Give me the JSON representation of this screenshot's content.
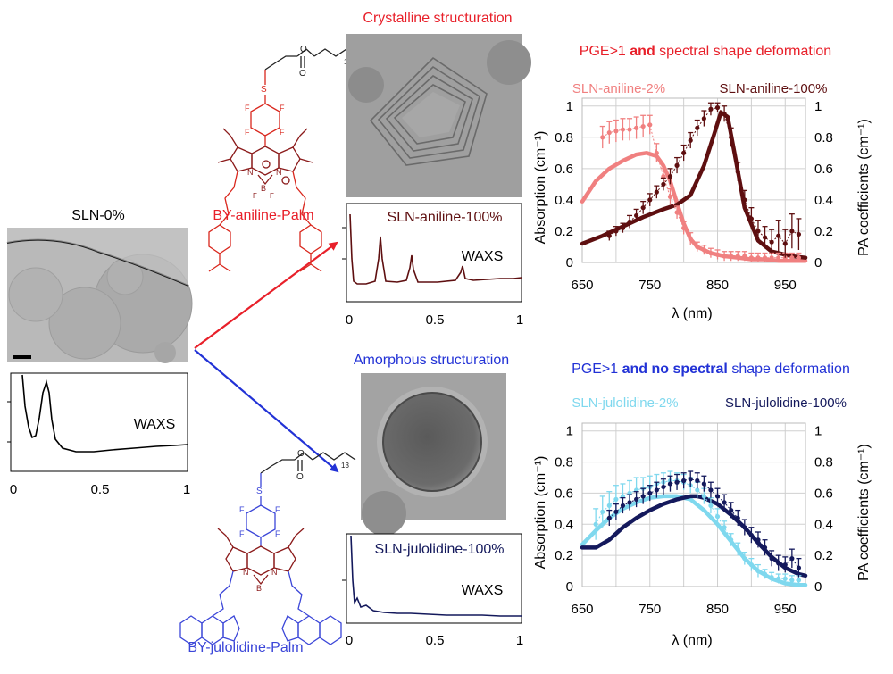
{
  "colors": {
    "red": "#e8202a",
    "blue": "#2232d6",
    "maroon": "#5e0f10",
    "salmon": "#f08080",
    "navy": "#14195c",
    "lightblue": "#7fd8ee",
    "bodipy_red": "#d9261c",
    "bodipy_blue": "#3b46d8",
    "bodipy_dark": "#8b1a1a"
  },
  "titles": {
    "crystalline": "Crystalline structuration",
    "amorphous": "Amorphous structuration"
  },
  "molecules": {
    "aniline": "BY-aniline-Palm",
    "julolidine": "BY-julolidine-Palm",
    "chain_subscript": "13"
  },
  "sln0": {
    "label": "SLN-0%",
    "waxs_label": "WAXS"
  },
  "waxs_axis": {
    "ticks": [
      "0",
      "0.5",
      "1"
    ]
  },
  "waxs_aniline": {
    "label": "SLN-aniline-100%",
    "waxs_label": "WAXS"
  },
  "waxs_julolidine": {
    "label": "SLN-julolidine-100%",
    "waxs_label": "WAXS"
  },
  "chart_data": [
    {
      "type": "line",
      "title_prefix": "PGE>1 ",
      "title_bold": "and",
      "title_suffix": " spectral shape deformation",
      "xlabel": "λ (nm)",
      "ylabel_left": "Absorption (cm⁻¹)",
      "ylabel_right": "PA coefficients (cm⁻¹)",
      "xlim": [
        650,
        980
      ],
      "ylim": [
        0,
        1.05
      ],
      "xticks": [
        "650",
        "750",
        "850",
        "950"
      ],
      "yticks_left": [
        "0",
        "0.2",
        "0.4",
        "0.6",
        "0.8",
        "1"
      ],
      "yticks_right": [
        "0",
        "0.2",
        "0.4",
        "0.6",
        "0.8",
        "1"
      ],
      "series": [
        {
          "name": "SLN-aniline-2%",
          "color": "#f08080",
          "x": [
            650,
            670,
            690,
            710,
            730,
            745,
            760,
            770,
            780,
            790,
            800,
            810,
            820,
            840,
            860,
            880,
            900,
            920,
            940,
            960,
            980
          ],
          "y": [
            0.39,
            0.52,
            0.6,
            0.65,
            0.69,
            0.7,
            0.68,
            0.62,
            0.52,
            0.38,
            0.25,
            0.15,
            0.1,
            0.06,
            0.04,
            0.03,
            0.02,
            0.02,
            0.01,
            0.01,
            0.01
          ]
        },
        {
          "name": "SLN-aniline-100%",
          "color": "#5e0f10",
          "x": [
            650,
            680,
            710,
            740,
            770,
            790,
            810,
            830,
            845,
            855,
            865,
            875,
            890,
            910,
            930,
            960,
            980
          ],
          "y": [
            0.12,
            0.17,
            0.23,
            0.29,
            0.34,
            0.37,
            0.43,
            0.62,
            0.82,
            0.96,
            0.93,
            0.7,
            0.35,
            0.14,
            0.07,
            0.04,
            0.03
          ]
        }
      ],
      "points": [
        {
          "series": "SLN-aniline-2%",
          "color": "#f08080",
          "x": [
            680,
            690,
            700,
            710,
            720,
            730,
            740,
            750,
            760,
            770,
            780,
            790,
            800,
            810,
            820,
            830,
            840,
            850,
            860,
            870,
            880,
            890,
            900,
            910,
            920,
            930,
            940,
            950,
            960,
            970
          ],
          "y": [
            0.8,
            0.83,
            0.84,
            0.85,
            0.85,
            0.86,
            0.87,
            0.88,
            0.7,
            0.55,
            0.42,
            0.32,
            0.22,
            0.15,
            0.1,
            0.08,
            0.06,
            0.05,
            0.04,
            0.04,
            0.04,
            0.04,
            0.03,
            0.03,
            0.03,
            0.03,
            0.03,
            0.03,
            0.03,
            0.03
          ],
          "err": [
            0.07,
            0.07,
            0.07,
            0.07,
            0.07,
            0.07,
            0.07,
            0.06,
            0.06,
            0.05,
            0.05,
            0.04,
            0.04,
            0.04,
            0.03,
            0.03,
            0.03,
            0.03,
            0.03,
            0.03,
            0.03,
            0.03,
            0.03,
            0.03,
            0.03,
            0.03,
            0.03,
            0.03,
            0.03,
            0.03
          ]
        },
        {
          "series": "SLN-aniline-100%",
          "color": "#5e0f10",
          "x": [
            690,
            700,
            710,
            720,
            730,
            740,
            750,
            760,
            770,
            780,
            790,
            800,
            810,
            820,
            830,
            840,
            850,
            860,
            870,
            880,
            890,
            900,
            910,
            920,
            930,
            940,
            950,
            960,
            970
          ],
          "y": [
            0.17,
            0.2,
            0.22,
            0.26,
            0.3,
            0.35,
            0.4,
            0.45,
            0.5,
            0.55,
            0.62,
            0.7,
            0.78,
            0.86,
            0.92,
            0.98,
            0.99,
            0.95,
            0.8,
            0.58,
            0.4,
            0.28,
            0.2,
            0.16,
            0.13,
            0.17,
            0.12,
            0.2,
            0.18
          ],
          "err": [
            0.03,
            0.03,
            0.03,
            0.04,
            0.04,
            0.04,
            0.04,
            0.04,
            0.04,
            0.05,
            0.05,
            0.05,
            0.05,
            0.05,
            0.05,
            0.04,
            0.03,
            0.05,
            0.06,
            0.06,
            0.06,
            0.07,
            0.07,
            0.07,
            0.08,
            0.1,
            0.09,
            0.11,
            0.1
          ]
        }
      ]
    },
    {
      "type": "line",
      "title_prefix": "PGE>1 ",
      "title_bold": "and no spectral",
      "title_suffix": " shape deformation",
      "xlabel": "λ (nm)",
      "ylabel_left": "Absorption (cm⁻¹)",
      "ylabel_right": "PA coefficients (cm⁻¹)",
      "xlim": [
        650,
        980
      ],
      "ylim": [
        0,
        1.05
      ],
      "xticks": [
        "650",
        "750",
        "850",
        "950"
      ],
      "yticks_left": [
        "0",
        "0.2",
        "0.4",
        "0.6",
        "0.8",
        "1"
      ],
      "yticks_right": [
        "0",
        "0.2",
        "0.4",
        "0.6",
        "0.8",
        "1"
      ],
      "series": [
        {
          "name": "SLN-julolidine-2%",
          "color": "#7fd8ee",
          "x": [
            650,
            670,
            690,
            710,
            730,
            750,
            770,
            790,
            810,
            830,
            850,
            870,
            890,
            910,
            930,
            950,
            970,
            980
          ],
          "y": [
            0.27,
            0.36,
            0.44,
            0.5,
            0.54,
            0.57,
            0.58,
            0.58,
            0.56,
            0.49,
            0.4,
            0.29,
            0.18,
            0.1,
            0.05,
            0.02,
            0.01,
            0.01
          ]
        },
        {
          "name": "SLN-julolidine-100%",
          "color": "#14195c",
          "x": [
            650,
            670,
            690,
            710,
            730,
            750,
            770,
            790,
            810,
            820,
            830,
            850,
            870,
            890,
            910,
            930,
            950,
            970,
            980
          ],
          "y": [
            0.25,
            0.25,
            0.3,
            0.38,
            0.44,
            0.49,
            0.53,
            0.56,
            0.58,
            0.58,
            0.57,
            0.53,
            0.46,
            0.38,
            0.28,
            0.19,
            0.12,
            0.08,
            0.07
          ]
        }
      ],
      "points": [
        {
          "series": "SLN-julolidine-2%",
          "color": "#7fd8ee",
          "x": [
            670,
            680,
            690,
            700,
            710,
            720,
            730,
            740,
            750,
            760,
            770,
            780,
            790,
            800,
            810,
            820,
            830,
            840,
            850,
            860,
            870,
            880,
            890,
            900,
            910,
            920,
            930,
            940,
            950,
            960,
            970
          ],
          "y": [
            0.4,
            0.48,
            0.52,
            0.56,
            0.58,
            0.6,
            0.62,
            0.63,
            0.64,
            0.66,
            0.67,
            0.68,
            0.68,
            0.67,
            0.65,
            0.62,
            0.58,
            0.52,
            0.45,
            0.38,
            0.3,
            0.24,
            0.18,
            0.14,
            0.1,
            0.08,
            0.06,
            0.05,
            0.05,
            0.04,
            0.04
          ],
          "err": [
            0.1,
            0.1,
            0.09,
            0.09,
            0.08,
            0.08,
            0.08,
            0.07,
            0.07,
            0.06,
            0.06,
            0.06,
            0.05,
            0.05,
            0.05,
            0.05,
            0.05,
            0.05,
            0.05,
            0.04,
            0.04,
            0.04,
            0.04,
            0.04,
            0.04,
            0.03,
            0.03,
            0.03,
            0.03,
            0.03,
            0.03
          ]
        },
        {
          "series": "SLN-julolidine-100%",
          "color": "#14195c",
          "x": [
            690,
            700,
            710,
            720,
            730,
            740,
            750,
            760,
            770,
            780,
            790,
            800,
            810,
            820,
            830,
            840,
            850,
            860,
            870,
            880,
            890,
            900,
            910,
            920,
            930,
            940,
            950,
            960,
            970
          ],
          "y": [
            0.44,
            0.48,
            0.52,
            0.54,
            0.56,
            0.58,
            0.6,
            0.62,
            0.64,
            0.66,
            0.67,
            0.68,
            0.69,
            0.68,
            0.66,
            0.62,
            0.58,
            0.54,
            0.49,
            0.44,
            0.38,
            0.33,
            0.3,
            0.25,
            0.18,
            0.15,
            0.14,
            0.18,
            0.12
          ],
          "err": [
            0.05,
            0.05,
            0.05,
            0.05,
            0.05,
            0.05,
            0.05,
            0.05,
            0.05,
            0.05,
            0.05,
            0.05,
            0.05,
            0.05,
            0.05,
            0.05,
            0.05,
            0.05,
            0.05,
            0.05,
            0.05,
            0.05,
            0.05,
            0.05,
            0.05,
            0.05,
            0.05,
            0.06,
            0.06
          ]
        }
      ]
    }
  ]
}
